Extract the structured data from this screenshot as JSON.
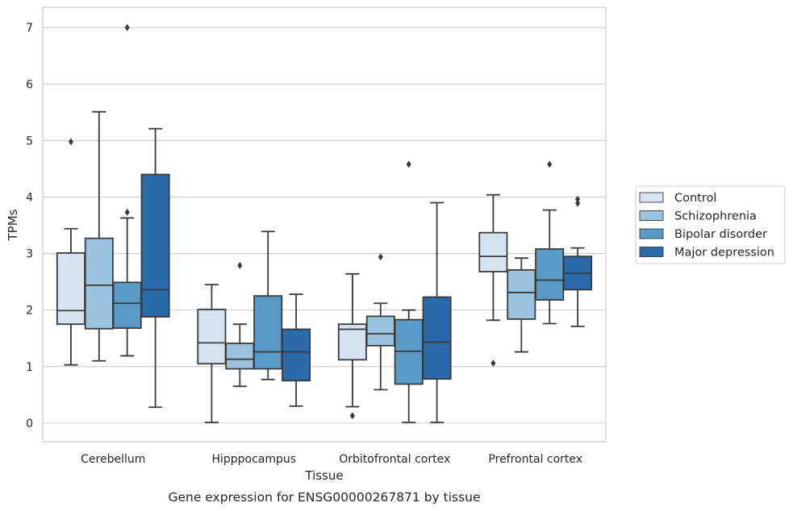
{
  "chart_data": {
    "type": "box",
    "xlabel": "Tissue",
    "ylabel": "TPMs",
    "caption": "Gene expression for ENSG00000267871 by tissue",
    "ylim": [
      -0.33,
      7.36
    ],
    "yticks": [
      0,
      1,
      2,
      3,
      4,
      5,
      6,
      7
    ],
    "grid": "horizontal",
    "legend_position": "right",
    "categories": [
      "Cerebellum",
      "Hipppocampus",
      "Orbitofrontal cortex",
      "Prefrontal cortex"
    ],
    "series": [
      {
        "name": "Control",
        "color": "#d6e4f2",
        "boxes": [
          {
            "whislo": 1.03,
            "q1": 1.75,
            "med": 1.99,
            "q3": 3.01,
            "whishi": 3.44,
            "fliers": [
              4.98
            ]
          },
          {
            "whislo": 0.01,
            "q1": 1.05,
            "med": 1.42,
            "q3": 2.01,
            "whishi": 2.45,
            "fliers": []
          },
          {
            "whislo": 0.29,
            "q1": 1.12,
            "med": 1.66,
            "q3": 1.75,
            "whishi": 2.64,
            "fliers": [
              0.13
            ]
          },
          {
            "whislo": 1.82,
            "q1": 2.68,
            "med": 2.95,
            "q3": 3.37,
            "whishi": 4.04,
            "fliers": [
              1.06
            ]
          }
        ]
      },
      {
        "name": "Schizophrenia",
        "color": "#9ac3df",
        "boxes": [
          {
            "whislo": 1.1,
            "q1": 1.67,
            "med": 2.44,
            "q3": 3.27,
            "whishi": 5.51,
            "fliers": []
          },
          {
            "whislo": 0.65,
            "q1": 0.96,
            "med": 1.13,
            "q3": 1.41,
            "whishi": 1.75,
            "fliers": [
              2.79
            ]
          },
          {
            "whislo": 0.59,
            "q1": 1.37,
            "med": 1.58,
            "q3": 1.89,
            "whishi": 2.12,
            "fliers": [
              2.94
            ]
          },
          {
            "whislo": 1.26,
            "q1": 1.84,
            "med": 2.31,
            "q3": 2.71,
            "whishi": 2.92,
            "fliers": []
          }
        ]
      },
      {
        "name": "Bipolar disorder",
        "color": "#5a9ac9",
        "boxes": [
          {
            "whislo": 1.19,
            "q1": 1.68,
            "med": 2.12,
            "q3": 2.49,
            "whishi": 3.63,
            "fliers": [
              3.73,
              7.0
            ]
          },
          {
            "whislo": 0.77,
            "q1": 0.96,
            "med": 1.26,
            "q3": 2.25,
            "whishi": 3.39,
            "fliers": []
          },
          {
            "whislo": 0.01,
            "q1": 0.69,
            "med": 1.27,
            "q3": 1.83,
            "whishi": 2.0,
            "fliers": [
              4.58
            ]
          },
          {
            "whislo": 1.76,
            "q1": 2.18,
            "med": 2.53,
            "q3": 3.08,
            "whishi": 3.77,
            "fliers": [
              4.58
            ]
          }
        ]
      },
      {
        "name": "Major depression",
        "color": "#2b6aaa",
        "boxes": [
          {
            "whislo": 0.28,
            "q1": 1.88,
            "med": 2.36,
            "q3": 4.4,
            "whishi": 5.21,
            "fliers": []
          },
          {
            "whislo": 0.3,
            "q1": 0.75,
            "med": 1.26,
            "q3": 1.66,
            "whishi": 2.28,
            "fliers": []
          },
          {
            "whislo": 0.01,
            "q1": 0.78,
            "med": 1.43,
            "q3": 2.23,
            "whishi": 3.9,
            "fliers": []
          },
          {
            "whislo": 1.71,
            "q1": 2.36,
            "med": 2.65,
            "q3": 2.95,
            "whishi": 3.1,
            "fliers": [
              3.89,
              3.96
            ]
          }
        ]
      }
    ]
  }
}
